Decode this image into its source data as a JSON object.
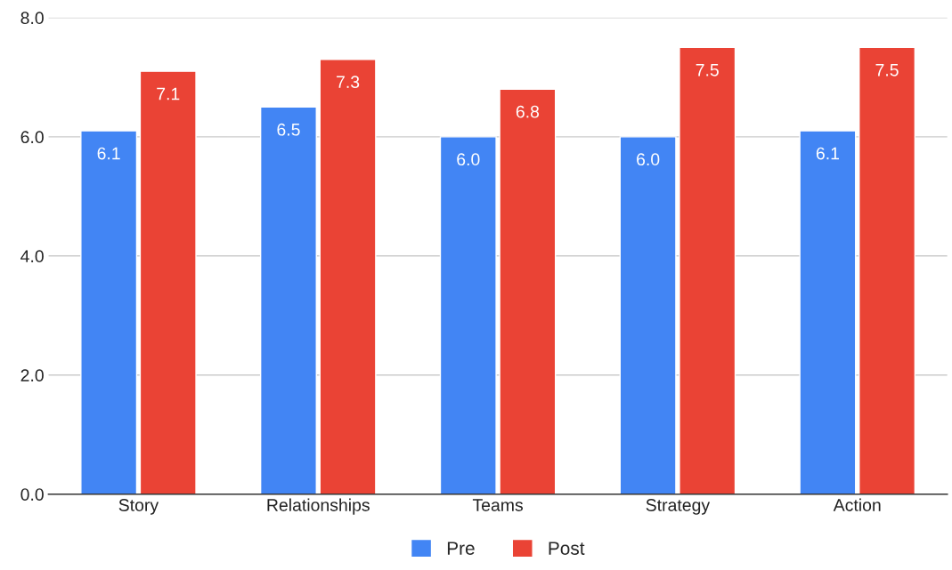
{
  "chart_data": {
    "type": "bar",
    "categories": [
      "Story",
      "Relationships",
      "Teams",
      "Strategy",
      "Action"
    ],
    "series": [
      {
        "name": "Pre",
        "color": "#4285f4",
        "values": [
          6.1,
          6.5,
          6.0,
          6.0,
          6.1
        ],
        "value_labels": [
          "6.1",
          "6.5",
          "6.0",
          "6.0",
          "6.1"
        ]
      },
      {
        "name": "Post",
        "color": "#ea4335",
        "values": [
          7.1,
          7.3,
          6.8,
          7.5,
          7.5
        ],
        "value_labels": [
          "7.1",
          "7.3",
          "6.8",
          "7.5",
          "7.5"
        ]
      }
    ],
    "ylim": [
      0,
      8
    ],
    "yticks": [
      {
        "value": 0,
        "label": "0.0"
      },
      {
        "value": 2,
        "label": "2.0"
      },
      {
        "value": 4,
        "label": "4.0"
      },
      {
        "value": 6,
        "label": "6.0"
      },
      {
        "value": 8,
        "label": "8.0"
      }
    ],
    "grid": "y",
    "legend": "bottom"
  }
}
